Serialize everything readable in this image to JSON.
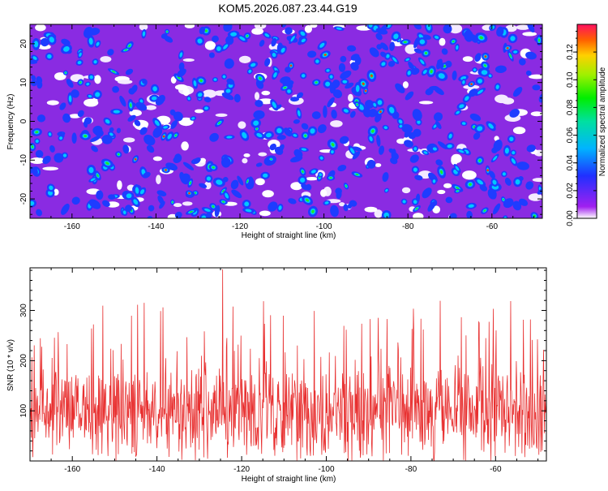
{
  "title": "KOM5.2026.087.23.44.G19",
  "chart_data": [
    {
      "type": "heatmap",
      "xlabel": "Height of straight line (km)",
      "ylabel": "Frequency (Hz)",
      "xlim": [
        -170,
        -48
      ],
      "ylim": [
        -25,
        25
      ],
      "xticks": [
        -160,
        -140,
        -120,
        -100,
        -80,
        -60
      ],
      "yticks": [
        -20,
        -10,
        0,
        10,
        20
      ],
      "colorbar": {
        "label": "Normalized spectral amplitude",
        "range": [
          0,
          0.14
        ],
        "ticks": [
          "0.00",
          "0.02",
          "0.04",
          "0.06",
          "0.08",
          "0.10",
          "0.12"
        ],
        "ticks_values": [
          0,
          0.02,
          0.04,
          0.06,
          0.08,
          0.1,
          0.12
        ]
      }
    },
    {
      "type": "line",
      "color": "#e83030",
      "xlabel": "Height of straight line (km)",
      "ylabel": "SNR (10 * v/v)",
      "xlim": [
        -170,
        -48
      ],
      "ylim": [
        0,
        385
      ],
      "xticks": [
        -160,
        -140,
        -120,
        -100,
        -80,
        -60
      ],
      "yticks": [
        100,
        200,
        300
      ],
      "series": [
        {
          "name": "SNR",
          "description": "dense noisy signal, mean about 100, range about 0 to 385"
        }
      ]
    }
  ]
}
